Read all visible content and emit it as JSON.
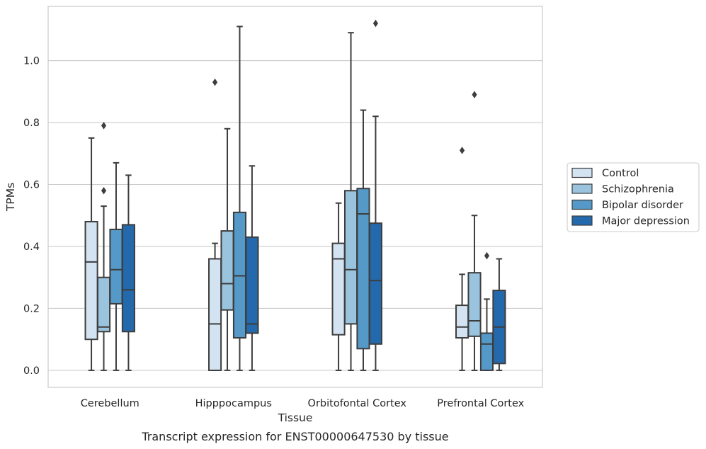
{
  "chart_data": {
    "type": "box",
    "xlabel": "Tissue",
    "ylabel": "TPMs",
    "caption": "Transcript expression for ENST00000647530 by tissue",
    "ylim": [
      -0.055,
      1.175
    ],
    "yticks": [
      "0.0",
      "0.2",
      "0.4",
      "0.6",
      "0.8",
      "1.0"
    ],
    "grid": "horizontal",
    "legend_position": "right",
    "categories": [
      "Cerebellum",
      "Hipppocampus",
      "Orbitofontal Cortex",
      "Prefrontal Cortex"
    ],
    "series": [
      {
        "name": "Control",
        "color": "#d3e3f2",
        "boxes": [
          {
            "whislo": 0.0,
            "q1": 0.1,
            "med": 0.35,
            "q3": 0.48,
            "whishi": 0.75,
            "fliers": []
          },
          {
            "whislo": 0.0,
            "q1": 0.0,
            "med": 0.15,
            "q3": 0.36,
            "whishi": 0.41,
            "fliers": [
              0.93
            ]
          },
          {
            "whislo": 0.0,
            "q1": 0.115,
            "med": 0.36,
            "q3": 0.41,
            "whishi": 0.54,
            "fliers": []
          },
          {
            "whislo": 0.0,
            "q1": 0.105,
            "med": 0.14,
            "q3": 0.21,
            "whishi": 0.31,
            "fliers": [
              0.71
            ]
          }
        ]
      },
      {
        "name": "Schizophrenia",
        "color": "#9ac4de",
        "boxes": [
          {
            "whislo": 0.0,
            "q1": 0.125,
            "med": 0.14,
            "q3": 0.3,
            "whishi": 0.53,
            "fliers": [
              0.58,
              0.79
            ]
          },
          {
            "whislo": 0.0,
            "q1": 0.195,
            "med": 0.28,
            "q3": 0.45,
            "whishi": 0.78,
            "fliers": []
          },
          {
            "whislo": 0.0,
            "q1": 0.15,
            "med": 0.325,
            "q3": 0.58,
            "whishi": 1.09,
            "fliers": []
          },
          {
            "whislo": 0.0,
            "q1": 0.11,
            "med": 0.16,
            "q3": 0.315,
            "whishi": 0.5,
            "fliers": [
              0.89
            ]
          }
        ]
      },
      {
        "name": "Bipolar disorder",
        "color": "#5499c8",
        "boxes": [
          {
            "whislo": 0.0,
            "q1": 0.215,
            "med": 0.325,
            "q3": 0.455,
            "whishi": 0.67,
            "fliers": []
          },
          {
            "whislo": 0.0,
            "q1": 0.105,
            "med": 0.305,
            "q3": 0.51,
            "whishi": 1.11,
            "fliers": []
          },
          {
            "whislo": 0.0,
            "q1": 0.07,
            "med": 0.505,
            "q3": 0.587,
            "whishi": 0.84,
            "fliers": []
          },
          {
            "whislo": 0.0,
            "q1": 0.0,
            "med": 0.085,
            "q3": 0.12,
            "whishi": 0.23,
            "fliers": [
              0.37
            ]
          }
        ]
      },
      {
        "name": "Major depression",
        "color": "#2469ac",
        "boxes": [
          {
            "whislo": 0.0,
            "q1": 0.125,
            "med": 0.26,
            "q3": 0.47,
            "whishi": 0.63,
            "fliers": []
          },
          {
            "whislo": 0.0,
            "q1": 0.12,
            "med": 0.15,
            "q3": 0.43,
            "whishi": 0.66,
            "fliers": []
          },
          {
            "whislo": 0.0,
            "q1": 0.085,
            "med": 0.29,
            "q3": 0.475,
            "whishi": 0.82,
            "fliers": [
              1.12
            ]
          },
          {
            "whislo": 0.0,
            "q1": 0.022,
            "med": 0.14,
            "q3": 0.258,
            "whishi": 0.36,
            "fliers": []
          }
        ]
      }
    ]
  }
}
